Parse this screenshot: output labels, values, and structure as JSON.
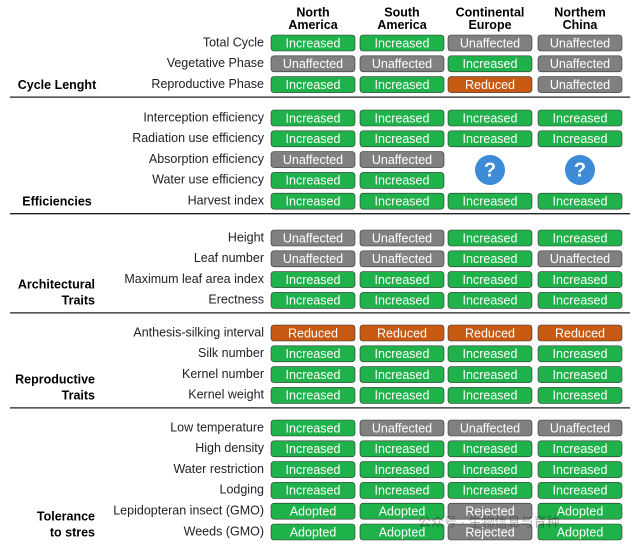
{
  "columns": [
    [
      "North",
      "America"
    ],
    [
      "South",
      "America"
    ],
    [
      "Continental",
      "Europe"
    ],
    [
      "Northem",
      "China"
    ]
  ],
  "colors": {
    "Increased": "#1fb24a",
    "Unaffected": "#808080",
    "Reduced": "#c65a13",
    "Adopted": "#1fb24a",
    "Rejected": "#808080",
    "?": "#3d8ad6"
  },
  "groups": [
    {
      "label_lines": [
        "Cycle Lenght"
      ],
      "rows": [
        {
          "label": "Total Cycle",
          "cells": [
            "Increased",
            "Increased",
            "Unaffected",
            "Unaffected"
          ]
        },
        {
          "label": "Vegetative Phase",
          "cells": [
            "Unaffected",
            "Unaffected",
            "Increased",
            "Unaffected"
          ]
        },
        {
          "label": "Reproductive Phase",
          "cells": [
            "Increased",
            "Increased",
            "Reduced",
            "Unaffected"
          ]
        }
      ]
    },
    {
      "label_lines": [
        "Efficiencies"
      ],
      "rows": [
        {
          "label": "Interception efficiency",
          "cells": [
            "Increased",
            "Increased",
            "Increased",
            "Increased"
          ]
        },
        {
          "label": "Radiation use efficiency",
          "cells": [
            "Increased",
            "Increased",
            "Increased",
            "Increased"
          ]
        },
        {
          "label": "Absorption efficiency",
          "cells": [
            "Unaffected",
            "Unaffected",
            "?",
            "?"
          ]
        },
        {
          "label": "Water use efficiency",
          "cells": [
            "Increased",
            "Increased",
            null,
            null
          ]
        },
        {
          "label": "Harvest index",
          "cells": [
            "Increased",
            "Increased",
            "Increased",
            "Increased"
          ]
        }
      ]
    },
    {
      "label_lines": [
        "Architectural",
        "Traits"
      ],
      "rows": [
        {
          "label": "Height",
          "cells": [
            "Unaffected",
            "Unaffected",
            "Increased",
            "Increased"
          ]
        },
        {
          "label": "Leaf number",
          "cells": [
            "Unaffected",
            "Unaffected",
            "Increased",
            "Unaffected"
          ]
        },
        {
          "label": "Maximum leaf area index",
          "cells": [
            "Increased",
            "Increased",
            "Increased",
            "Increased"
          ]
        },
        {
          "label": "Erectness",
          "cells": [
            "Increased",
            "Increased",
            "Increased",
            "Increased"
          ]
        }
      ]
    },
    {
      "label_lines": [
        "Reproductive",
        "Traits"
      ],
      "rows": [
        {
          "label": "Anthesis-silking interval",
          "cells": [
            "Reduced",
            "Reduced",
            "Reduced",
            "Reduced"
          ]
        },
        {
          "label": "Silk number",
          "cells": [
            "Increased",
            "Increased",
            "Increased",
            "Increased"
          ]
        },
        {
          "label": "Kernel number",
          "cells": [
            "Increased",
            "Increased",
            "Increased",
            "Increased"
          ]
        },
        {
          "label": "Kernel weight",
          "cells": [
            "Increased",
            "Increased",
            "Increased",
            "Increased"
          ]
        }
      ]
    },
    {
      "label_lines": [
        "Tolerance",
        "to stres"
      ],
      "rows": [
        {
          "label": "Low temperature",
          "cells": [
            "Increased",
            "Unaffected",
            "Unaffected",
            "Unaffected"
          ]
        },
        {
          "label": "High density",
          "cells": [
            "Increased",
            "Increased",
            "Increased",
            "Increased"
          ]
        },
        {
          "label": "Water restriction",
          "cells": [
            "Increased",
            "Increased",
            "Increased",
            "Increased"
          ]
        },
        {
          "label": "Lodging",
          "cells": [
            "Increased",
            "Increased",
            "Increased",
            "Increased"
          ]
        },
        {
          "label": "Lepidopteran insect (GMO)",
          "cells": [
            "Adopted",
            "Adopted",
            "Rejected",
            "Adopted"
          ]
        },
        {
          "label": "Weeds (GMO)",
          "cells": [
            "Adopted",
            "Adopted",
            "Rejected",
            "Adopted"
          ]
        }
      ]
    }
  ],
  "watermark": "公众号 · 生物信息与育种"
}
